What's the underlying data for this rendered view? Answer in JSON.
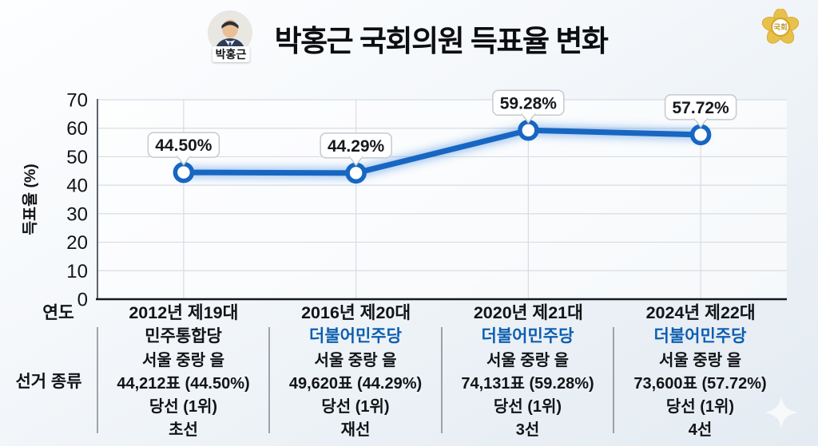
{
  "header": {
    "title": "박홍근 국회의원 득표율 변화",
    "avatar_name": "박홍근",
    "emblem_text": "국회"
  },
  "chart_data": {
    "type": "line",
    "title": "박홍근 국회의원 득표율 변화",
    "categories": [
      "2012년 제19대",
      "2016년 제20대",
      "2020년 제21대",
      "2024년 제22대"
    ],
    "values": [
      44.5,
      44.29,
      59.28,
      57.72
    ],
    "point_labels": [
      "44.50%",
      "44.29%",
      "59.28%",
      "57.72%"
    ],
    "xlabel": "연도",
    "ylabel": "득표율 (%)",
    "ylim": [
      0,
      70
    ],
    "yticks": [
      0,
      10,
      20,
      30,
      40,
      50,
      60,
      70
    ],
    "grid": true,
    "legend": false,
    "line_color": "#1766c2",
    "marker": "open-circle-white-fill"
  },
  "table": {
    "row_label": "선거 종류",
    "party_color_blue": "#0d5eb0",
    "columns": [
      {
        "party": "민주통합당",
        "party_blue": false,
        "district": "서울 중랑 을",
        "votes": "44,212표 (44.50%)",
        "result": "당선 (1위)",
        "term": "초선"
      },
      {
        "party": "더불어민주당",
        "party_blue": true,
        "district": "서울 중랑 을",
        "votes": "49,620표 (44.29%)",
        "result": "당선 (1위)",
        "term": "재선"
      },
      {
        "party": "더불어민주당",
        "party_blue": true,
        "district": "서울 중랑 을",
        "votes": "74,131표 (59.28%)",
        "result": "당선 (1위)",
        "term": "3선"
      },
      {
        "party": "더불어민주당",
        "party_blue": true,
        "district": "서울 중랑 을",
        "votes": "73,600표 (57.72%)",
        "result": "당선 (1위)",
        "term": "4선"
      }
    ]
  }
}
